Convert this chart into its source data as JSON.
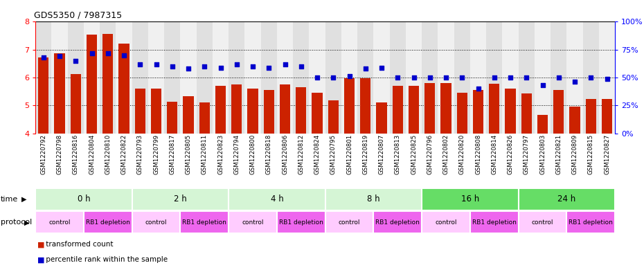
{
  "title": "GDS5350 / 7987315",
  "samples": [
    "GSM1220792",
    "GSM1220798",
    "GSM1220816",
    "GSM1220804",
    "GSM1220810",
    "GSM1220822",
    "GSM1220793",
    "GSM1220799",
    "GSM1220817",
    "GSM1220805",
    "GSM1220811",
    "GSM1220823",
    "GSM1220794",
    "GSM1220800",
    "GSM1220818",
    "GSM1220806",
    "GSM1220812",
    "GSM1220824",
    "GSM1220795",
    "GSM1220801",
    "GSM1220819",
    "GSM1220807",
    "GSM1220813",
    "GSM1220825",
    "GSM1220796",
    "GSM1220802",
    "GSM1220820",
    "GSM1220808",
    "GSM1220814",
    "GSM1220826",
    "GSM1220797",
    "GSM1220803",
    "GSM1220821",
    "GSM1220809",
    "GSM1220815",
    "GSM1220827"
  ],
  "bar_values": [
    6.72,
    6.88,
    6.12,
    7.55,
    7.56,
    7.22,
    5.6,
    5.6,
    5.12,
    5.33,
    5.1,
    5.7,
    5.75,
    5.6,
    5.55,
    5.75,
    5.65,
    5.45,
    5.17,
    5.97,
    5.97,
    5.1,
    5.7,
    5.7,
    5.8,
    5.8,
    5.46,
    5.55,
    5.77,
    5.6,
    5.43,
    4.65,
    5.55,
    4.95,
    5.22,
    5.22
  ],
  "dot_values": [
    68,
    69,
    65,
    72,
    72,
    70,
    62,
    62,
    60,
    58,
    60,
    59,
    62,
    60,
    59,
    62,
    60,
    50,
    50,
    51,
    58,
    59,
    50,
    50,
    50,
    50,
    50,
    40,
    50,
    50,
    50,
    43,
    50,
    46,
    50,
    49
  ],
  "time_groups": [
    {
      "label": "0 h",
      "start": 0,
      "end": 6,
      "color": "#d5f5d5"
    },
    {
      "label": "2 h",
      "start": 6,
      "end": 12,
      "color": "#d5f5d5"
    },
    {
      "label": "4 h",
      "start": 12,
      "end": 18,
      "color": "#d5f5d5"
    },
    {
      "label": "8 h",
      "start": 18,
      "end": 24,
      "color": "#d5f5d5"
    },
    {
      "label": "16 h",
      "start": 24,
      "end": 30,
      "color": "#66dd66"
    },
    {
      "label": "24 h",
      "start": 30,
      "end": 36,
      "color": "#66dd66"
    }
  ],
  "protocol_groups": [
    {
      "label": "control",
      "start": 0,
      "end": 3,
      "color": "#ffccff"
    },
    {
      "label": "RB1 depletion",
      "start": 3,
      "end": 6,
      "color": "#ee66ee"
    },
    {
      "label": "control",
      "start": 6,
      "end": 9,
      "color": "#ffccff"
    },
    {
      "label": "RB1 depletion",
      "start": 9,
      "end": 12,
      "color": "#ee66ee"
    },
    {
      "label": "control",
      "start": 12,
      "end": 15,
      "color": "#ffccff"
    },
    {
      "label": "RB1 depletion",
      "start": 15,
      "end": 18,
      "color": "#ee66ee"
    },
    {
      "label": "control",
      "start": 18,
      "end": 21,
      "color": "#ffccff"
    },
    {
      "label": "RB1 depletion",
      "start": 21,
      "end": 24,
      "color": "#ee66ee"
    },
    {
      "label": "control",
      "start": 24,
      "end": 27,
      "color": "#ffccff"
    },
    {
      "label": "RB1 depletion",
      "start": 27,
      "end": 30,
      "color": "#ee66ee"
    },
    {
      "label": "control",
      "start": 30,
      "end": 33,
      "color": "#ffccff"
    },
    {
      "label": "RB1 depletion",
      "start": 33,
      "end": 36,
      "color": "#ee66ee"
    }
  ],
  "bar_color": "#cc2200",
  "dot_color": "#0000cc",
  "ylim": [
    4,
    8
  ],
  "yticks": [
    4,
    5,
    6,
    7,
    8
  ],
  "y2lim": [
    0,
    100
  ],
  "y2ticks": [
    0,
    25,
    50,
    75,
    100
  ],
  "col_bg_even": "#e0e0e0",
  "col_bg_odd": "#f0f0f0"
}
